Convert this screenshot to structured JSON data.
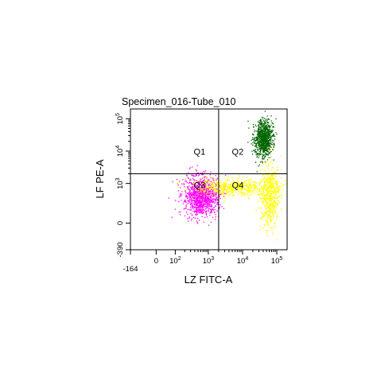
{
  "chart_data": {
    "type": "scatter",
    "title": "Specimen_016-Tube_010",
    "xlabel": "LZ FITC-A",
    "ylabel": "LF PE-A",
    "x_scale": "biexponential",
    "y_scale": "biexponential",
    "xlim": [
      -164,
      200000
    ],
    "ylim": [
      -390,
      200000
    ],
    "x_ticks": [
      {
        "value": -164,
        "label": "-164"
      },
      {
        "value": 0,
        "label": "0"
      },
      {
        "value": 100,
        "label": "10",
        "exp": "2"
      },
      {
        "value": 1000,
        "label": "10",
        "exp": "3"
      },
      {
        "value": 10000,
        "label": "10",
        "exp": "4"
      },
      {
        "value": 100000,
        "label": "10",
        "exp": "5"
      }
    ],
    "y_ticks": [
      {
        "value": -390,
        "label": "-390"
      },
      {
        "value": 0,
        "label": "0"
      },
      {
        "value": 1000,
        "label": "10",
        "exp": "3"
      },
      {
        "value": 10000,
        "label": "10",
        "exp": "4"
      },
      {
        "value": 100000,
        "label": "10",
        "exp": "5"
      }
    ],
    "quadrant_gate": {
      "x": 2000,
      "y": 2000
    },
    "quadrants": [
      {
        "label": "Q1",
        "pos": "upper-left"
      },
      {
        "label": "Q2",
        "pos": "upper-right"
      },
      {
        "label": "Q3",
        "pos": "lower-left"
      },
      {
        "label": "Q4",
        "pos": "lower-right"
      }
    ],
    "series": [
      {
        "color": "#006400",
        "count": 900,
        "clusters": [
          {
            "x": 40000,
            "y": 25000,
            "spread_x": 0.25,
            "spread_y": 0.25,
            "rot": 0.9
          }
        ]
      },
      {
        "color": "#ff00ff",
        "count": 1100,
        "clusters": [
          {
            "x": 600,
            "y": 400,
            "spread_x": 0.22,
            "spread_y": 0.28,
            "rot": 0
          }
        ]
      },
      {
        "color": "#ffff00",
        "count": 1200,
        "clusters": [
          {
            "x": 60000,
            "y": 400,
            "spread_x": 0.12,
            "spread_y": 0.45,
            "rot": 0
          },
          {
            "x": 5000,
            "y": 800,
            "spread_x": 0.5,
            "spread_y": 0.12,
            "rot": 0
          }
        ]
      }
    ]
  }
}
